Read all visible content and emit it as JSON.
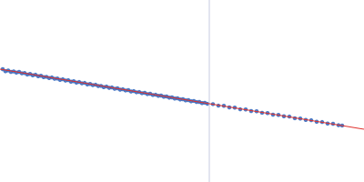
{
  "chart_data": {
    "type": "scatter",
    "xlim": [
      0,
      400
    ],
    "ylim": [
      0,
      200
    ],
    "tick_labels": false,
    "grid": false,
    "series": [
      {
        "type": "line",
        "line_style": "solid",
        "color": "#d0d4e6",
        "x": [
          230,
          230
        ],
        "values": [
          0,
          200
        ]
      },
      {
        "type": "line",
        "line_style": "solid",
        "color": "#e0302c",
        "x": [
          0,
          400
        ],
        "values": [
          124,
          58
        ]
      },
      {
        "type": "scatter",
        "marker": "circle",
        "color": "#3a6cbf",
        "x": [
          3,
          6,
          9,
          12,
          15,
          18,
          21,
          24,
          27,
          30,
          33,
          36,
          39,
          42,
          45,
          48,
          51,
          54,
          57,
          60,
          63,
          66,
          69,
          72,
          75,
          78,
          81,
          84,
          87,
          90,
          93,
          96,
          99,
          102,
          105,
          108,
          111,
          114,
          117,
          120,
          123,
          126,
          129,
          132,
          135,
          138,
          141,
          144,
          147,
          150,
          153,
          156,
          159,
          162,
          165,
          168,
          171,
          174,
          177,
          180,
          183,
          186,
          189,
          192,
          195,
          198,
          201,
          204,
          207,
          210,
          213,
          216,
          219,
          222,
          225,
          228,
          234,
          240,
          246,
          252,
          258,
          264,
          270,
          276,
          282,
          288,
          294,
          300,
          306,
          312,
          318,
          324,
          330,
          336,
          342,
          348,
          354,
          360,
          366,
          372,
          376
        ],
        "values": [
          124,
          121.8,
          122.6,
          121,
          121.5,
          120.2,
          121,
          119.4,
          119.8,
          118.1,
          118.7,
          117.2,
          117.9,
          116.3,
          116.8,
          115.2,
          115.6,
          114.2,
          114.9,
          113.4,
          113.8,
          112.3,
          112.9,
          111.5,
          111.9,
          110.3,
          110.8,
          109.2,
          109.9,
          108.4,
          108.9,
          107.2,
          107.8,
          106.4,
          106.9,
          105.5,
          105.6,
          104.3,
          104.9,
          103.5,
          103.9,
          102.4,
          103,
          101.5,
          101.9,
          100.6,
          101,
          99.5,
          99.9,
          98.6,
          98.9,
          97.6,
          98,
          96.6,
          97,
          95.6,
          95.9,
          94.7,
          95,
          93.7,
          94,
          92.8,
          93,
          91.8,
          92,
          90.7,
          91,
          89.8,
          90,
          88.8,
          89.1,
          87.9,
          88,
          86.8,
          87.1,
          85.9,
          85.6,
          83.9,
          83.7,
          82,
          81.8,
          79.9,
          79.7,
          78,
          77.8,
          76.1,
          75.7,
          74,
          73.8,
          72.2,
          71.9,
          70.1,
          69.8,
          68.2,
          67.9,
          66.2,
          65.9,
          64.3,
          64,
          62.4,
          62.1
        ]
      }
    ]
  }
}
